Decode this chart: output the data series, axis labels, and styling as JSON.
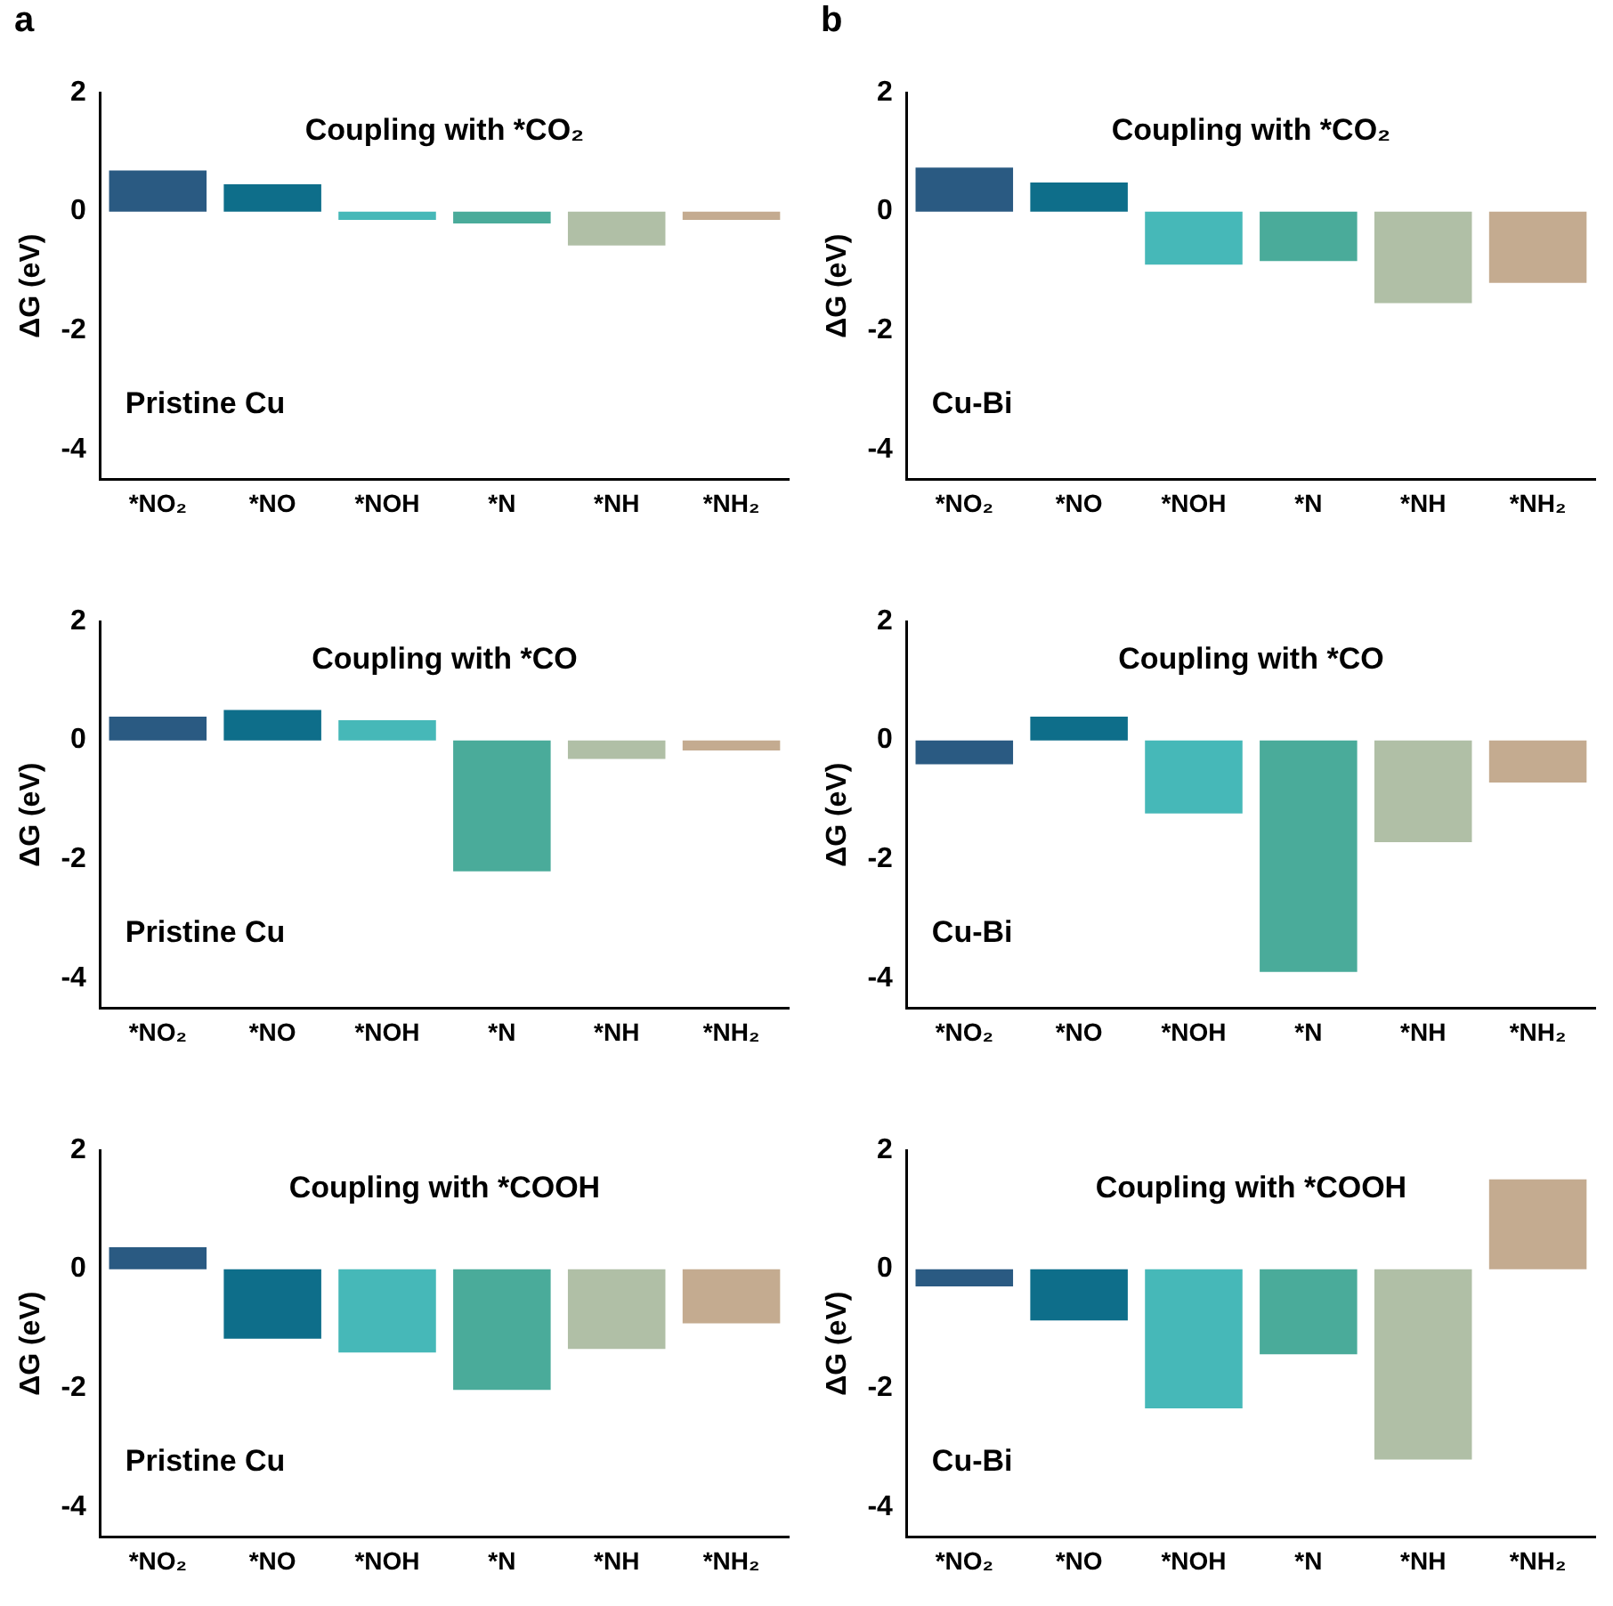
{
  "chart_data": [
    {
      "type": "bar",
      "title": "Coupling with *CO₂",
      "ylabel": "ΔG (eV)",
      "annotations": [
        "Pristine Cu",
        "a"
      ],
      "categories": [
        "*NO₂",
        "*NO",
        "*NOH",
        "*N",
        "*NH",
        "*NH₂"
      ],
      "values": [
        0.69,
        0.46,
        -0.14,
        -0.2,
        -0.57,
        -0.14
      ],
      "colors": [
        "#2a5a82",
        "#0e6e8a",
        "#46b8b8",
        "#4aab9a",
        "#b0bfa6",
        "#c4ab90"
      ],
      "ylim": [
        -4.5,
        2
      ],
      "yticks": [
        -4,
        -2,
        0,
        2
      ],
      "grid": false,
      "legend": false
    },
    {
      "type": "bar",
      "title": "Coupling with *CO₂",
      "ylabel": "ΔG (eV)",
      "annotations": [
        "Cu-Bi",
        "b"
      ],
      "categories": [
        "*NO₂",
        "*NO",
        "*NOH",
        "*N",
        "*NH",
        "*NH₂"
      ],
      "values": [
        0.74,
        0.49,
        -0.89,
        -0.83,
        -1.54,
        -1.2
      ],
      "colors": [
        "#2a5a82",
        "#0e6e8a",
        "#46b8b8",
        "#4aab9a",
        "#b0bfa6",
        "#c4ab90"
      ],
      "ylim": [
        -4.5,
        2
      ],
      "yticks": [
        -4,
        -2,
        0,
        2
      ],
      "grid": false,
      "legend": false
    },
    {
      "type": "bar",
      "title": "Coupling with *CO",
      "ylabel": "ΔG (eV)",
      "annotations": [
        "Pristine Cu"
      ],
      "categories": [
        "*NO₂",
        "*NO",
        "*NOH",
        "*N",
        "*NH",
        "*NH₂"
      ],
      "values": [
        0.4,
        0.51,
        0.34,
        -2.2,
        -0.31,
        -0.17
      ],
      "colors": [
        "#2a5a82",
        "#0e6e8a",
        "#46b8b8",
        "#4aab9a",
        "#b0bfa6",
        "#c4ab90"
      ],
      "ylim": [
        -4.5,
        2
      ],
      "yticks": [
        -4,
        -2,
        0,
        2
      ],
      "grid": false,
      "legend": false
    },
    {
      "type": "bar",
      "title": "Coupling with *CO",
      "ylabel": "ΔG (eV)",
      "annotations": [
        "Cu-Bi"
      ],
      "categories": [
        "*NO₂",
        "*NO",
        "*NOH",
        "*N",
        "*NH",
        "*NH₂"
      ],
      "values": [
        -0.4,
        0.4,
        -1.23,
        -3.89,
        -1.71,
        -0.71
      ],
      "colors": [
        "#2a5a82",
        "#0e6e8a",
        "#46b8b8",
        "#4aab9a",
        "#b0bfa6",
        "#c4ab90"
      ],
      "ylim": [
        -4.5,
        2
      ],
      "yticks": [
        -4,
        -2,
        0,
        2
      ],
      "grid": false,
      "legend": false
    },
    {
      "type": "bar",
      "title": "Coupling with *COOH",
      "ylabel": "ΔG (eV)",
      "annotations": [
        "Pristine Cu"
      ],
      "categories": [
        "*NO₂",
        "*NO",
        "*NOH",
        "*N",
        "*NH",
        "*NH₂"
      ],
      "values": [
        0.37,
        -1.17,
        -1.4,
        -2.03,
        -1.34,
        -0.91
      ],
      "colors": [
        "#2a5a82",
        "#0e6e8a",
        "#46b8b8",
        "#4aab9a",
        "#b0bfa6",
        "#c4ab90"
      ],
      "ylim": [
        -4.5,
        2
      ],
      "yticks": [
        -4,
        -2,
        0,
        2
      ],
      "grid": false,
      "legend": false
    },
    {
      "type": "bar",
      "title": "Coupling with *COOH",
      "ylabel": "ΔG (eV)",
      "annotations": [
        "Cu-Bi"
      ],
      "categories": [
        "*NO₂",
        "*NO",
        "*NOH",
        "*N",
        "*NH",
        "*NH₂"
      ],
      "values": [
        -0.29,
        -0.86,
        -2.34,
        -1.43,
        -3.2,
        1.51
      ],
      "colors": [
        "#2a5a82",
        "#0e6e8a",
        "#46b8b8",
        "#4aab9a",
        "#b0bfa6",
        "#c4ab90"
      ],
      "ylim": [
        -4.5,
        2
      ],
      "yticks": [
        -4,
        -2,
        0,
        2
      ],
      "grid": false,
      "legend": false
    }
  ]
}
